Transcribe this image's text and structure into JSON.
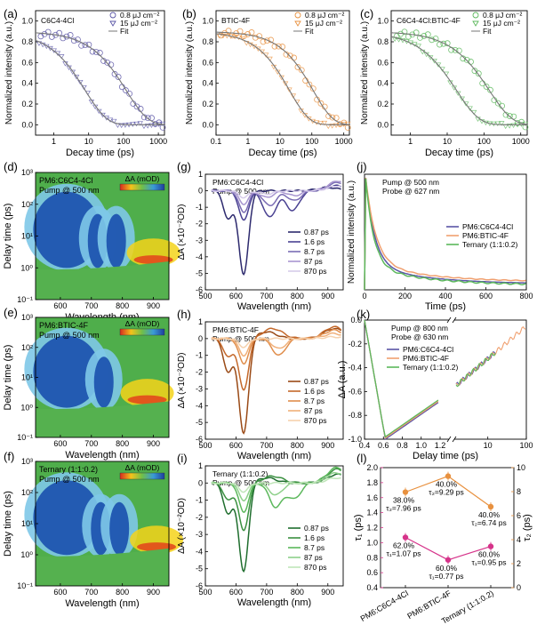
{
  "colors": {
    "blue": "#5a55a6",
    "orange": "#e8913f",
    "green": "#5cb85c",
    "gray": "#777777",
    "pink": "#d6338a",
    "orange2": "#f0a060",
    "lavender": "#b3a8d9"
  },
  "chart_data": [
    {
      "panel": "(a)",
      "type": "scatter",
      "title": "C6C4-4Cl",
      "xlabel": "Decay time (ps)",
      "ylabel": "Normalized intensity (a.u.)",
      "xscale": "log",
      "xlim": [
        0.3,
        1500
      ],
      "ylim": [
        -0.1,
        1.1
      ],
      "xticks": [
        "1",
        "10",
        "100",
        "1000"
      ],
      "yticks": [
        "0.0",
        "0.2",
        "0.4",
        "0.6",
        "0.8",
        "1.0"
      ],
      "legend": [
        "0.8 μJ cm⁻²",
        "15 μJ cm⁻²",
        "Fit"
      ],
      "series": [
        {
          "name": "0.8 μJ cm⁻²",
          "marker": "circle",
          "tau": 120
        },
        {
          "name": "15 μJ cm⁻²",
          "marker": "triangle",
          "tau": 8
        },
        {
          "name": "Fit",
          "marker": "line",
          "tau": 120
        }
      ]
    },
    {
      "panel": "(b)",
      "type": "scatter",
      "title": "BTIC-4F",
      "xlabel": "Decay time (ps)",
      "ylabel": "Normalized intensity (a.u.)",
      "xscale": "log",
      "xlim": [
        0.1,
        1500
      ],
      "ylim": [
        -0.1,
        1.1
      ],
      "xticks": [
        "0.1",
        "1",
        "10",
        "100",
        "1000"
      ],
      "yticks": [
        "0.0",
        "0.2",
        "0.4",
        "0.6",
        "0.8",
        "1.0"
      ],
      "legend": [
        "0.8 μJ cm⁻²",
        "15 μJ cm⁻²",
        "Fit"
      ],
      "series": [
        {
          "name": "0.8 μJ cm⁻²",
          "marker": "circle",
          "tau": 110
        },
        {
          "name": "15 μJ cm⁻²",
          "marker": "triangle",
          "tau": 20
        },
        {
          "name": "Fit",
          "marker": "line",
          "tau": 110
        }
      ]
    },
    {
      "panel": "(c)",
      "type": "scatter",
      "title": "C6C4-4Cl:BTIC-4F",
      "xlabel": "Decay time (ps)",
      "ylabel": "Normalized intensity (a.u.)",
      "xscale": "log",
      "xlim": [
        0.3,
        1500
      ],
      "ylim": [
        -0.1,
        1.1
      ],
      "xticks": [
        "1",
        "10",
        "100",
        "1000"
      ],
      "yticks": [
        "0.0",
        "0.2",
        "0.4",
        "0.6",
        "0.8",
        "1.0"
      ],
      "legend": [
        "0.8 μJ cm⁻²",
        "15 μJ cm⁻²",
        "Fit"
      ],
      "series": [
        {
          "name": "0.8 μJ cm⁻²",
          "marker": "circle",
          "tau": 140
        },
        {
          "name": "15 μJ cm⁻²",
          "marker": "triangle",
          "tau": 18
        },
        {
          "name": "Fit",
          "marker": "line",
          "tau": 140
        }
      ]
    },
    {
      "panel": "(d)",
      "type": "heatmap",
      "title": "PM6:C6C4-4Cl",
      "subtitle": "Pump @ 500 nm",
      "xlabel": "Wavelength (nm)",
      "ylabel": "Delay time (ps)",
      "colorbar_label": "ΔA (mOD)",
      "xlim": [
        520,
        950
      ],
      "yscale": "log",
      "ylim": [
        0.1,
        1000
      ],
      "xticks": [
        "600",
        "700",
        "800",
        "900"
      ],
      "yticks": [
        "10⁻¹",
        "10⁰",
        "10¹",
        "10²",
        "10³"
      ],
      "features": [
        {
          "center_nm": 620,
          "sign": "negative"
        },
        {
          "center_nm": 720,
          "sign": "negative"
        },
        {
          "center_nm": 780,
          "sign": "negative"
        },
        {
          "center_nm": 900,
          "sign": "positive"
        }
      ]
    },
    {
      "panel": "(e)",
      "type": "heatmap",
      "title": "PM6:BTIC-4F",
      "subtitle": "Pump @ 500 nm",
      "xlabel": "Wavelength (nm)",
      "ylabel": "Delay time (ps)",
      "colorbar_label": "ΔA (mOD)",
      "xlim": [
        520,
        950
      ],
      "yscale": "log",
      "ylim": [
        0.1,
        1000
      ],
      "xticks": [
        "600",
        "700",
        "800",
        "900"
      ],
      "yticks": [
        "10⁻¹",
        "10⁰",
        "10¹",
        "10²",
        "10³"
      ],
      "features": [
        {
          "center_nm": 620,
          "sign": "negative"
        },
        {
          "center_nm": 740,
          "sign": "negative"
        },
        {
          "center_nm": 880,
          "sign": "positive"
        }
      ]
    },
    {
      "panel": "(f)",
      "type": "heatmap",
      "title": "Ternary (1:1:0.2)",
      "subtitle": "Pump @ 500 nm",
      "xlabel": "Wavelength (nm)",
      "ylabel": "Delay time (ps)",
      "colorbar_label": "ΔA (mOD)",
      "xlim": [
        520,
        950
      ],
      "yscale": "log",
      "ylim": [
        0.1,
        1000
      ],
      "xticks": [
        "600",
        "700",
        "800",
        "900"
      ],
      "yticks": [
        "10⁻¹",
        "10⁰",
        "10¹",
        "10²",
        "10³"
      ],
      "features": [
        {
          "center_nm": 620,
          "sign": "negative"
        },
        {
          "center_nm": 730,
          "sign": "negative"
        },
        {
          "center_nm": 790,
          "sign": "negative"
        },
        {
          "center_nm": 910,
          "sign": "positive"
        }
      ]
    },
    {
      "panel": "(g)",
      "type": "line",
      "title": "PM6:C6C4-4Cl",
      "subtitle": "Pump @ 500 nm",
      "xlabel": "Wavelength (nm)",
      "ylabel": "ΔA (×10⁻²OD)",
      "xlim": [
        500,
        950
      ],
      "ylim": [
        -6,
        1
      ],
      "xticks": [
        "500",
        "600",
        "700",
        "800",
        "900"
      ],
      "yticks": [
        "-6",
        "-5",
        "-4",
        "-3",
        "-2",
        "-1",
        "0",
        "1"
      ],
      "series": [
        {
          "name": "0.87 ps",
          "color": "#2d2a6e",
          "peaks": [
            [
              625,
              -5.1
            ],
            [
              575,
              -1.7
            ]
          ],
          "tail": [
            [
              900,
              0.2
            ]
          ]
        },
        {
          "name": "1.6 ps",
          "color": "#4a4292",
          "peaks": [
            [
              625,
              -1.8
            ],
            [
              710,
              -1.6
            ],
            [
              785,
              -1.2
            ]
          ],
          "tail": [
            [
              930,
              0.3
            ]
          ]
        },
        {
          "name": "8.7 ps",
          "color": "#7a6cb4",
          "peaks": [
            [
              625,
              -1.3
            ],
            [
              710,
              -0.9
            ],
            [
              790,
              -0.6
            ]
          ],
          "tail": [
            [
              935,
              0.5
            ]
          ]
        },
        {
          "name": "87 ps",
          "color": "#a896d0",
          "peaks": [
            [
              625,
              -0.8
            ],
            [
              700,
              -0.4
            ],
            [
              790,
              -0.3
            ]
          ],
          "tail": [
            [
              935,
              0.6
            ]
          ]
        },
        {
          "name": "870 ps",
          "color": "#d6ccea",
          "peaks": [
            [
              625,
              -0.4
            ],
            [
              700,
              -0.2
            ]
          ],
          "tail": [
            [
              935,
              0.3
            ]
          ]
        }
      ]
    },
    {
      "panel": "(h)",
      "type": "line",
      "title": "PM6:BTIC-4F",
      "subtitle": "Pump @ 500 nm",
      "xlabel": "Wavelength (nm)",
      "ylabel": "ΔA (×10⁻²OD)",
      "xlim": [
        500,
        950
      ],
      "ylim": [
        -6,
        1
      ],
      "xticks": [
        "500",
        "600",
        "700",
        "800",
        "900"
      ],
      "yticks": [
        "-6",
        "-5",
        "-4",
        "-3",
        "-2",
        "-1",
        "0",
        "1"
      ],
      "series": [
        {
          "name": "0.87 ps",
          "color": "#9a4a16",
          "peaks": [
            [
              625,
              -5.7
            ],
            [
              575,
              -2.0
            ]
          ],
          "tail": [
            [
              700,
              0.4
            ],
            [
              920,
              0.6
            ]
          ]
        },
        {
          "name": "1.6 ps",
          "color": "#c4682a",
          "peaks": [
            [
              625,
              -3.1
            ],
            [
              575,
              -1.1
            ]
          ],
          "tail": [
            [
              720,
              0.6
            ],
            [
              920,
              0.7
            ]
          ]
        },
        {
          "name": "8.7 ps",
          "color": "#e08e4c",
          "peaks": [
            [
              625,
              -1.5
            ],
            [
              740,
              -1.0
            ]
          ],
          "tail": [
            [
              920,
              0.5
            ]
          ]
        },
        {
          "name": "87 ps",
          "color": "#f0b07a",
          "peaks": [
            [
              625,
              -1.0
            ],
            [
              740,
              -0.6
            ]
          ],
          "tail": [
            [
              920,
              0.3
            ]
          ]
        },
        {
          "name": "870 ps",
          "color": "#f6d2ae",
          "peaks": [
            [
              625,
              -0.5
            ]
          ],
          "tail": [
            [
              920,
              0.1
            ]
          ]
        }
      ]
    },
    {
      "panel": "(i)",
      "type": "line",
      "title": "Ternary (1:1:0.2)",
      "subtitle": "Pump @ 500 nm",
      "xlabel": "Wavelength (nm)",
      "ylabel": "ΔA (×10⁻²OD)",
      "xlim": [
        500,
        950
      ],
      "ylim": [
        -6,
        1
      ],
      "xticks": [
        "500",
        "600",
        "700",
        "800",
        "900"
      ],
      "yticks": [
        "-6",
        "-5",
        "-4",
        "-3",
        "-2",
        "-1",
        "0",
        "1"
      ],
      "series": [
        {
          "name": "0.87 ps",
          "color": "#1f6e2e",
          "peaks": [
            [
              625,
              -5.2
            ],
            [
              575,
              -1.8
            ]
          ],
          "tail": [
            [
              700,
              0.3
            ],
            [
              930,
              0.5
            ]
          ]
        },
        {
          "name": "1.6 ps",
          "color": "#3a9040",
          "peaks": [
            [
              625,
              -2.8
            ],
            [
              575,
              -1.0
            ]
          ],
          "tail": [
            [
              720,
              0.4
            ],
            [
              930,
              0.8
            ]
          ]
        },
        {
          "name": "8.7 ps",
          "color": "#5cb85c",
          "peaks": [
            [
              625,
              -1.7
            ],
            [
              730,
              -1.4
            ],
            [
              790,
              -0.9
            ]
          ],
          "tail": [
            [
              930,
              0.9
            ]
          ]
        },
        {
          "name": "87 ps",
          "color": "#8ed08a",
          "peaks": [
            [
              625,
              -1.0
            ],
            [
              730,
              -0.7
            ]
          ],
          "tail": [
            [
              930,
              0.6
            ]
          ]
        },
        {
          "name": "870 ps",
          "color": "#c0e6b9",
          "peaks": [
            [
              625,
              -0.5
            ]
          ],
          "tail": [
            [
              930,
              0.3
            ]
          ]
        }
      ]
    },
    {
      "panel": "(j)",
      "type": "line",
      "title": "Pump @ 500 nm",
      "subtitle": "Probe @ 627 nm",
      "xlabel": "Time (ps)",
      "ylabel": "Normalized intensity (a.u.)",
      "xlim": [
        0,
        800
      ],
      "ylim": [
        0,
        1
      ],
      "xticks": [
        "0",
        "200",
        "400",
        "600",
        "800"
      ],
      "series": [
        {
          "name": "PM6:C6C4-4Cl",
          "color": "#5a55a6",
          "plateau": 0.06,
          "tau": 45
        },
        {
          "name": "PM6:BTIC-4F",
          "color": "#f0a070",
          "plateau": 0.08,
          "tau": 50
        },
        {
          "name": "Ternary (1:1:0.2)",
          "color": "#5cb85c",
          "plateau": 0.05,
          "tau": 40
        }
      ]
    },
    {
      "panel": "(k)",
      "type": "line",
      "title": "Pump @ 800 nm",
      "subtitle": "Probe @ 630 nm",
      "xlabel": "Delay time (ps)",
      "ylabel": "ΔA (a.u.)",
      "xscale": "broken: linear 0.4–1.2, log 1.5–100",
      "ylim": [
        -1.0,
        0.0
      ],
      "xticks": [
        "0.4",
        "0.6",
        "0.8",
        "1.0",
        "1.2",
        "10",
        "100"
      ],
      "yticks": [
        "-1.0",
        "-0.8",
        "-0.6",
        "-0.4",
        "-0.2",
        "0.0"
      ],
      "series": [
        {
          "name": "PM6:C6C4-4Cl",
          "color": "#5a55a6"
        },
        {
          "name": "PM6:BTIC-4F",
          "color": "#f0a070"
        },
        {
          "name": "Ternary (1:1:0.2)",
          "color": "#5cb85c"
        }
      ]
    },
    {
      "panel": "(l)",
      "type": "scatter",
      "categories": [
        "PM6:C6C4-4Cl",
        "PM6:BTIC-4F",
        "Ternary (1:1:0.2)"
      ],
      "ylabel_left": "τ₁ (ps)",
      "ylabel_right": "τ₂ (ps)",
      "ylim_left": [
        0.4,
        2.0
      ],
      "ylim_right": [
        0,
        10
      ],
      "yticks_left": [
        "0.4",
        "0.6",
        "0.8",
        "1.0",
        "1.2",
        "1.4",
        "1.6",
        "1.8",
        "2.0"
      ],
      "yticks_right": [
        "0",
        "2",
        "4",
        "6",
        "8",
        "10"
      ],
      "series": [
        {
          "name": "τ₁",
          "axis": "left",
          "color": "#d6338a",
          "values": [
            1.07,
            0.77,
            0.95
          ],
          "percent": [
            "62.0%",
            "60.0%",
            "60.0%"
          ],
          "labels": [
            "τ₁=1.07 ps",
            "τ₁=0.77 ps",
            "τ₁=0.95 ps"
          ]
        },
        {
          "name": "τ₂",
          "axis": "right",
          "color": "#e8913f",
          "values": [
            7.96,
            9.29,
            6.74
          ],
          "percent": [
            "38.0%",
            "40.0%",
            "40.0%"
          ],
          "labels": [
            "τ₂=7.96 ps",
            "τ₂=9.29 ps",
            "τ₂=6.74 ps"
          ]
        }
      ]
    }
  ]
}
